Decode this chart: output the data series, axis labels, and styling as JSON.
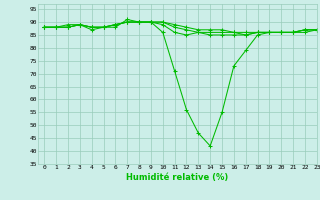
{
  "xlabel": "Humidité relative (%)",
  "background_color": "#cceee8",
  "grid_color": "#99ccbb",
  "line_color": "#00bb00",
  "marker": "+",
  "xlim": [
    -0.5,
    23
  ],
  "ylim": [
    35,
    97
  ],
  "yticks": [
    35,
    40,
    45,
    50,
    55,
    60,
    65,
    70,
    75,
    80,
    85,
    90,
    95
  ],
  "xticks": [
    0,
    1,
    2,
    3,
    4,
    5,
    6,
    7,
    8,
    9,
    10,
    11,
    12,
    13,
    14,
    15,
    16,
    17,
    18,
    19,
    20,
    21,
    22,
    23
  ],
  "series": [
    [
      88,
      88,
      88,
      89,
      87,
      88,
      88,
      91,
      90,
      90,
      86,
      71,
      56,
      47,
      42,
      55,
      73,
      79,
      85,
      86,
      86,
      86,
      87,
      87
    ],
    [
      88,
      88,
      89,
      89,
      88,
      88,
      89,
      90,
      90,
      90,
      89,
      86,
      85,
      86,
      85,
      85,
      85,
      85,
      86,
      86,
      86,
      86,
      87,
      87
    ],
    [
      88,
      88,
      88,
      89,
      88,
      88,
      89,
      90,
      90,
      90,
      90,
      88,
      87,
      86,
      86,
      86,
      86,
      85,
      86,
      86,
      86,
      86,
      86,
      87
    ],
    [
      88,
      88,
      88,
      89,
      88,
      88,
      89,
      90,
      90,
      90,
      90,
      89,
      88,
      87,
      87,
      87,
      86,
      86,
      86,
      86,
      86,
      86,
      87,
      87
    ]
  ]
}
